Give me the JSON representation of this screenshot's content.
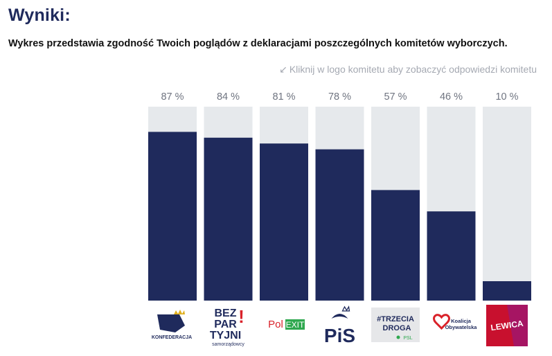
{
  "header": {
    "title": "Wyniki:",
    "subtitle": "Wykres przedstawia zgodność Twoich poglądów z deklaracjami poszczególnych komitetów wyborczych.",
    "hint": "Kliknij w logo komitetu aby zobaczyć odpowiedzi komitetu",
    "hint_icon": "arrow-down-left-icon"
  },
  "colors": {
    "bar_fill": "#1f2a5c",
    "bar_background": "#e6e9ec",
    "label": "#6f7480"
  },
  "chart_data": {
    "type": "bar",
    "categories": [
      "Konfederacja",
      "Bezpartyjni Samorządowcy",
      "PolEXIT",
      "PiS",
      "Trzecia Droga",
      "Koalicja Obywatelska",
      "Lewica"
    ],
    "values": [
      87,
      84,
      81,
      78,
      57,
      46,
      10
    ],
    "value_labels": [
      "87 %",
      "84 %",
      "81 %",
      "78 %",
      "57 %",
      "46 %",
      "10 %"
    ],
    "ylim": [
      0,
      100
    ],
    "grid": false,
    "legend": "none"
  },
  "logos": [
    {
      "name": "konfederacja-logo",
      "text": [
        "KONFEDERACJA"
      ]
    },
    {
      "name": "bezpartyjni-logo",
      "text": [
        "BEZ",
        "PAR",
        "TYJNI",
        "!",
        "samorządowcy"
      ]
    },
    {
      "name": "polexit-logo",
      "text": [
        "Pol",
        "EXIT"
      ]
    },
    {
      "name": "pis-logo",
      "text": [
        "PiS"
      ]
    },
    {
      "name": "trzecia-droga-logo",
      "text": [
        "#TRZECIA",
        "DROGA",
        "PSL"
      ]
    },
    {
      "name": "koalicja-logo",
      "text": [
        "Koalicja",
        "Obywatelska"
      ]
    },
    {
      "name": "lewica-logo",
      "text": [
        "LEWICA"
      ]
    }
  ]
}
